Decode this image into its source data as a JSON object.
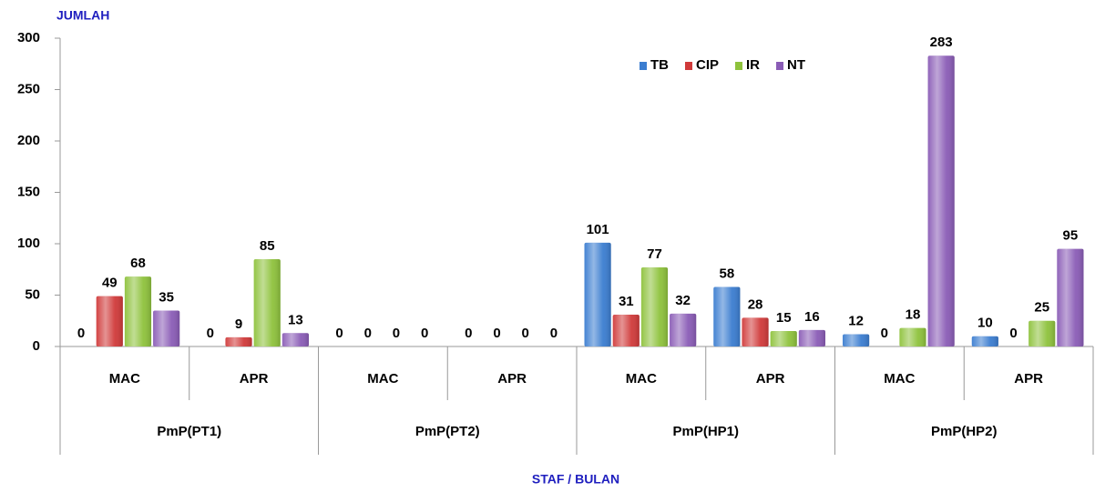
{
  "chart_data": {
    "type": "bar",
    "y_axis_title": "JUMLAH",
    "x_axis_title": "STAF / BULAN",
    "categories": [
      "MAC",
      "APR",
      "MAC",
      "APR",
      "MAC",
      "APR",
      "MAC",
      "APR"
    ],
    "groups": [
      "PmP(PT1)",
      "PmP(PT2)",
      "PmP(HP1)",
      "PmP(HP2)"
    ],
    "series": [
      {
        "name": "TB",
        "color": "#3b7dd0",
        "values": [
          0,
          0,
          0,
          0,
          101,
          58,
          12,
          10
        ]
      },
      {
        "name": "CIP",
        "color": "#d03a3a",
        "values": [
          49,
          9,
          0,
          0,
          31,
          28,
          0,
          0
        ]
      },
      {
        "name": "IR",
        "color": "#8ec23c",
        "values": [
          68,
          85,
          0,
          0,
          77,
          15,
          18,
          25
        ]
      },
      {
        "name": "NT",
        "color": "#8a5cb6",
        "values": [
          35,
          13,
          0,
          0,
          32,
          16,
          283,
          95
        ]
      }
    ],
    "ylim": [
      0,
      300
    ],
    "yticks": [
      0,
      50,
      100,
      150,
      200,
      250,
      300
    ],
    "legend": "top-right"
  }
}
